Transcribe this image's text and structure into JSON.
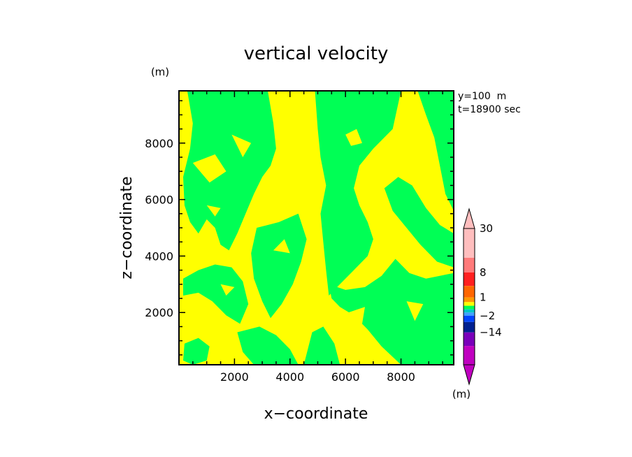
{
  "chart_data": {
    "type": "heatmap",
    "title": "vertical velocity",
    "xlabel": "x−coordinate",
    "ylabel": "z−coordinate",
    "y_unit": "(m)",
    "colorbar_unit": "(m)",
    "info_lines": [
      "y=100  m",
      "t=18900 sec"
    ],
    "xlim": [
      0,
      9900
    ],
    "ylim": [
      150,
      9850
    ],
    "xticks": [
      2000,
      4000,
      6000,
      8000
    ],
    "yticks": [
      2000,
      4000,
      6000,
      8000
    ],
    "xtick_labels": [
      "2000",
      "4000",
      "6000",
      "8000"
    ],
    "ytick_labels": [
      "2000",
      "4000",
      "6000",
      "8000"
    ],
    "background_color": "#ffff00",
    "foreground_color": "#00ff55",
    "colorbar": {
      "labels": [
        "30",
        "8",
        "1",
        "−2",
        "−14"
      ],
      "levels": [
        "−30",
        "−14",
        "−8",
        "−2",
        "−1",
        "−0.5",
        "0",
        "0.5",
        "1",
        "2",
        "8",
        "14",
        "30"
      ],
      "colors": [
        "#c000c0",
        "#7a00ba",
        "#002090",
        "#0044ff",
        "#40a0ff",
        "#00c8c8",
        "#00ff55",
        "#ffff00",
        "#ff9900",
        "#ff6600",
        "#ff2020",
        "#ff7a7a",
        "#ffbebe"
      ],
      "label_levels": [
        30,
        8,
        1,
        -2,
        -14
      ]
    },
    "regions": [
      {
        "value_class": "downward",
        "color": "#00ff55",
        "polygon": [
          [
            300,
            9850
          ],
          [
            3200,
            9850
          ],
          [
            3400,
            8700
          ],
          [
            3500,
            7800
          ],
          [
            3300,
            7200
          ],
          [
            3000,
            6800
          ],
          [
            2700,
            6200
          ],
          [
            2400,
            5500
          ],
          [
            2100,
            4800
          ],
          [
            1800,
            4200
          ],
          [
            1500,
            4400
          ],
          [
            1300,
            5000
          ],
          [
            1000,
            5300
          ],
          [
            700,
            4800
          ],
          [
            400,
            5200
          ],
          [
            200,
            5800
          ],
          [
            150,
            6800
          ],
          [
            400,
            7800
          ],
          [
            500,
            8700
          ]
        ]
      },
      {
        "value_class": "downward",
        "color": "#00ff55",
        "polygon": [
          [
            4900,
            9850
          ],
          [
            8000,
            9850
          ],
          [
            7700,
            8500
          ],
          [
            7000,
            7800
          ],
          [
            6500,
            7200
          ],
          [
            6300,
            6400
          ],
          [
            6500,
            5800
          ],
          [
            6800,
            5200
          ],
          [
            7000,
            4600
          ],
          [
            6800,
            4000
          ],
          [
            6300,
            3500
          ],
          [
            5800,
            3000
          ],
          [
            5400,
            2600
          ],
          [
            5300,
            3500
          ],
          [
            5200,
            4500
          ],
          [
            5100,
            5500
          ],
          [
            5300,
            6500
          ],
          [
            5100,
            7500
          ],
          [
            5000,
            8500
          ]
        ]
      },
      {
        "value_class": "downward",
        "color": "#00ff55",
        "polygon": [
          [
            2800,
            5000
          ],
          [
            3600,
            5200
          ],
          [
            4300,
            5500
          ],
          [
            4600,
            4600
          ],
          [
            4400,
            3800
          ],
          [
            4100,
            3000
          ],
          [
            3700,
            2300
          ],
          [
            3300,
            1800
          ],
          [
            3000,
            2400
          ],
          [
            2700,
            3200
          ],
          [
            2600,
            4100
          ]
        ]
      },
      {
        "value_class": "downward",
        "color": "#00ff55",
        "polygon": [
          [
            5400,
            3000
          ],
          [
            6000,
            2800
          ],
          [
            6700,
            2900
          ],
          [
            7300,
            3300
          ],
          [
            7800,
            3900
          ],
          [
            8300,
            3400
          ],
          [
            8900,
            3200
          ],
          [
            9900,
            3400
          ],
          [
            9900,
            150
          ],
          [
            8000,
            150
          ],
          [
            7300,
            800
          ],
          [
            6800,
            1400
          ],
          [
            6300,
            1900
          ],
          [
            5800,
            2200
          ],
          [
            5500,
            2500
          ]
        ]
      },
      {
        "value_class": "downward",
        "color": "#00ff55",
        "polygon": [
          [
            4500,
            150
          ],
          [
            5800,
            150
          ],
          [
            5600,
            900
          ],
          [
            5200,
            1500
          ],
          [
            4800,
            1300
          ]
        ]
      },
      {
        "value_class": "downward",
        "color": "#00ff55",
        "polygon": [
          [
            150,
            3200
          ],
          [
            700,
            3500
          ],
          [
            1300,
            3700
          ],
          [
            1900,
            3600
          ],
          [
            2300,
            3100
          ],
          [
            2500,
            2300
          ],
          [
            2200,
            1600
          ],
          [
            1700,
            1900
          ],
          [
            1200,
            2400
          ],
          [
            700,
            2700
          ],
          [
            150,
            2600
          ]
        ]
      },
      {
        "value_class": "downward",
        "color": "#00ff55",
        "polygon": [
          [
            2100,
            1300
          ],
          [
            2900,
            1500
          ],
          [
            3500,
            1200
          ],
          [
            4000,
            700
          ],
          [
            4300,
            150
          ],
          [
            2700,
            150
          ],
          [
            2300,
            600
          ]
        ]
      },
      {
        "value_class": "downward",
        "color": "#00ff55",
        "polygon": [
          [
            200,
            900
          ],
          [
            700,
            1100
          ],
          [
            1100,
            800
          ],
          [
            1000,
            300
          ],
          [
            500,
            150
          ],
          [
            150,
            300
          ]
        ]
      },
      {
        "value_class": "downward",
        "color": "#00ff55",
        "polygon": [
          [
            8600,
            9850
          ],
          [
            9900,
            9850
          ],
          [
            9900,
            5600
          ],
          [
            9600,
            6200
          ],
          [
            9400,
            7200
          ],
          [
            9200,
            8200
          ],
          [
            8900,
            9000
          ]
        ]
      },
      {
        "value_class": "downward",
        "color": "#00ff55",
        "polygon": [
          [
            7400,
            6400
          ],
          [
            7900,
            6800
          ],
          [
            8400,
            6500
          ],
          [
            8900,
            5700
          ],
          [
            9400,
            5100
          ],
          [
            9900,
            4800
          ],
          [
            9900,
            3600
          ],
          [
            9300,
            3800
          ],
          [
            8700,
            4400
          ],
          [
            8200,
            5000
          ],
          [
            7700,
            5600
          ]
        ]
      },
      {
        "value_class": "upward",
        "color": "#ffff00",
        "polygon": [
          [
            500,
            7300
          ],
          [
            1300,
            7600
          ],
          [
            1700,
            7000
          ],
          [
            1100,
            6600
          ]
        ]
      },
      {
        "value_class": "upward",
        "color": "#ffff00",
        "polygon": [
          [
            1900,
            8300
          ],
          [
            2600,
            8000
          ],
          [
            2300,
            7500
          ]
        ]
      },
      {
        "value_class": "upward",
        "color": "#ffff00",
        "polygon": [
          [
            6000,
            8300
          ],
          [
            6400,
            8500
          ],
          [
            6600,
            8000
          ],
          [
            6200,
            7900
          ]
        ]
      },
      {
        "value_class": "upward",
        "color": "#ffff00",
        "polygon": [
          [
            1000,
            5800
          ],
          [
            1500,
            5700
          ],
          [
            1300,
            5400
          ]
        ]
      },
      {
        "value_class": "upward",
        "color": "#ffff00",
        "polygon": [
          [
            7800,
            4800
          ],
          [
            8300,
            4700
          ],
          [
            8100,
            4300
          ]
        ]
      },
      {
        "value_class": "upward",
        "color": "#ffff00",
        "polygon": [
          [
            8200,
            2400
          ],
          [
            8800,
            2300
          ],
          [
            8500,
            1700
          ]
        ]
      },
      {
        "value_class": "upward",
        "color": "#ffff00",
        "polygon": [
          [
            6100,
            2000
          ],
          [
            6700,
            2200
          ],
          [
            6600,
            1600
          ]
        ]
      },
      {
        "value_class": "upward",
        "color": "#ffff00",
        "polygon": [
          [
            1500,
            3000
          ],
          [
            2000,
            2900
          ],
          [
            1700,
            2600
          ]
        ]
      },
      {
        "value_class": "upward",
        "color": "#ffff00",
        "polygon": [
          [
            3400,
            4200
          ],
          [
            3800,
            4600
          ],
          [
            4000,
            4100
          ]
        ]
      }
    ]
  }
}
